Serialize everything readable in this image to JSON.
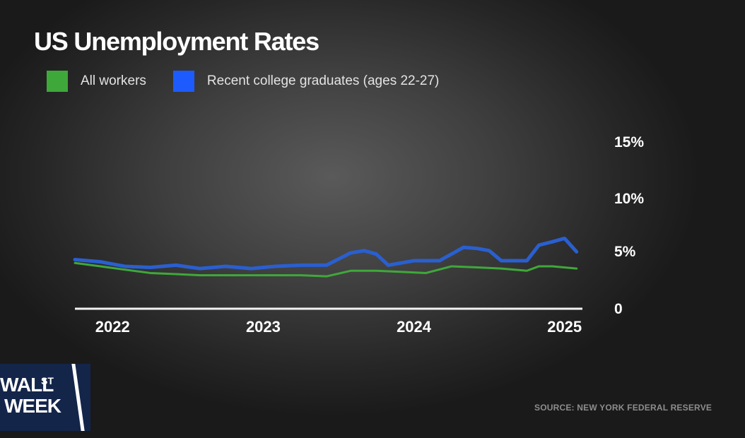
{
  "title": "US Unemployment Rates",
  "legend": [
    {
      "label": "All workers",
      "color": "#3fa83a"
    },
    {
      "label": "Recent college graduates (ages 22-27)",
      "color": "#1e5bff"
    }
  ],
  "source": "SOURCE: NEW YORK FEDERAL RESERVE",
  "logo": {
    "line1": "WALL",
    "superscript": "ST",
    "line2": "WEEK"
  },
  "chart_data": {
    "type": "line",
    "title": "US Unemployment Rates",
    "xlabel": "",
    "ylabel": "",
    "x_tick_labels": [
      "2022",
      "2023",
      "2024",
      "2025"
    ],
    "y_tick_labels": [
      "0",
      "5%",
      "10%",
      "15%"
    ],
    "y_ticks": [
      0,
      5,
      10,
      15
    ],
    "ylim": [
      0,
      15
    ],
    "xlim": [
      2021.75,
      2025.1
    ],
    "grid": false,
    "legend_position": "top-left",
    "series": [
      {
        "name": "Recent college graduates (ages 22-27)",
        "color": "#2a5fcf",
        "x": [
          2021.75,
          2021.92,
          2022.08,
          2022.25,
          2022.42,
          2022.58,
          2022.75,
          2022.92,
          2023.08,
          2023.25,
          2023.42,
          2023.58,
          2023.67,
          2023.75,
          2023.83,
          2024.0,
          2024.17,
          2024.33,
          2024.42,
          2024.5,
          2024.58,
          2024.67,
          2024.75,
          2024.83,
          2024.92,
          2025.0,
          2025.08
        ],
        "y": [
          4.4,
          4.2,
          3.8,
          3.7,
          3.9,
          3.6,
          3.8,
          3.6,
          3.8,
          3.9,
          3.9,
          5.0,
          5.2,
          4.9,
          3.9,
          4.3,
          4.3,
          5.5,
          5.4,
          5.2,
          4.3,
          4.3,
          4.3,
          5.7,
          6.0,
          6.3,
          5.1
        ]
      },
      {
        "name": "All workers",
        "color": "#3fa83a",
        "x": [
          2021.75,
          2021.92,
          2022.08,
          2022.25,
          2022.42,
          2022.58,
          2022.75,
          2022.92,
          2023.08,
          2023.25,
          2023.42,
          2023.58,
          2023.75,
          2023.92,
          2024.08,
          2024.25,
          2024.42,
          2024.58,
          2024.75,
          2024.83,
          2024.92,
          2025.08
        ],
        "y": [
          4.1,
          3.8,
          3.5,
          3.2,
          3.1,
          3.0,
          3.0,
          3.0,
          3.0,
          3.0,
          2.9,
          3.4,
          3.4,
          3.3,
          3.2,
          3.8,
          3.7,
          3.6,
          3.4,
          3.8,
          3.8,
          3.6
        ]
      }
    ]
  }
}
